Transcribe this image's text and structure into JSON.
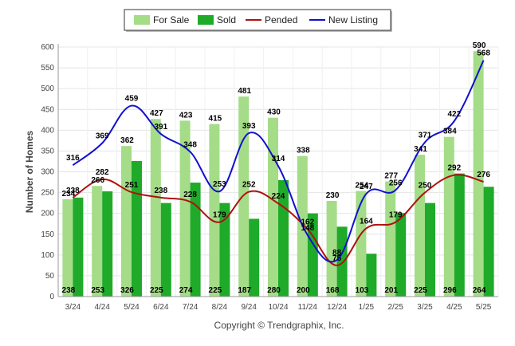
{
  "chart_data": {
    "type": "bar",
    "categories": [
      "3/24",
      "4/24",
      "5/24",
      "6/24",
      "7/24",
      "8/24",
      "9/24",
      "10/24",
      "11/24",
      "12/24",
      "1/25",
      "2/25",
      "3/25",
      "4/25",
      "5/25"
    ],
    "ylabel": "Number of Homes",
    "ylim": [
      0,
      600
    ],
    "yticks": [
      0,
      50,
      100,
      150,
      200,
      250,
      300,
      350,
      400,
      450,
      500,
      550,
      600
    ],
    "grid": true,
    "legend_position": "top-center",
    "series": [
      {
        "name": "For Sale",
        "kind": "bar",
        "color": "#a4dc88",
        "values": [
          234,
          266,
          362,
          427,
          423,
          415,
          481,
          430,
          338,
          230,
          254,
          277,
          341,
          384,
          590
        ]
      },
      {
        "name": "Sold",
        "kind": "bar",
        "color": "#1faa2a",
        "values": [
          238,
          253,
          326,
          225,
          274,
          225,
          187,
          280,
          200,
          168,
          103,
          201,
          225,
          296,
          264
        ]
      },
      {
        "name": "Pended",
        "kind": "line",
        "color": "#b01010",
        "values": [
          238,
          282,
          251,
          238,
          228,
          179,
          252,
          224,
          162,
          75,
          164,
          179,
          250,
          292,
          276
        ]
      },
      {
        "name": "New Listing",
        "kind": "line",
        "color": "#1010d0",
        "values": [
          316,
          369,
          459,
          391,
          348,
          253,
          393,
          314,
          148,
          88,
          247,
          256,
          371,
          422,
          568
        ]
      }
    ]
  },
  "footer": {
    "copyright": "Copyright © Trendgraphix, Inc."
  }
}
